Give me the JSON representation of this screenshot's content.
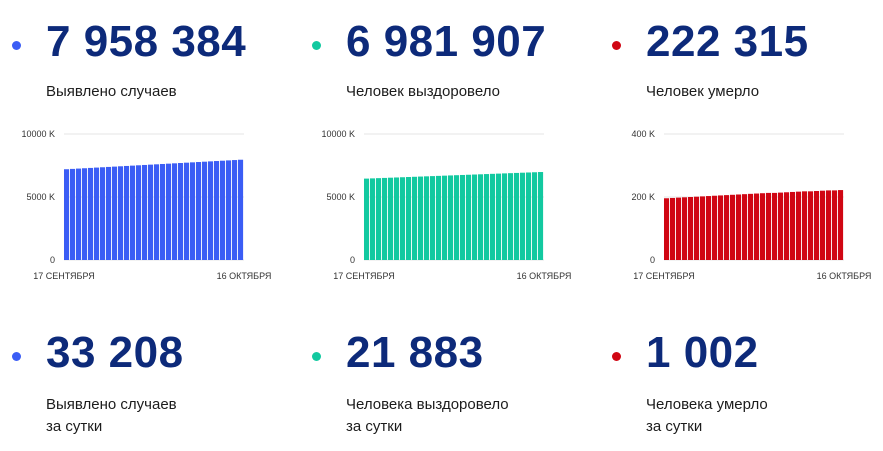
{
  "colors": {
    "title": "#0d2a7a",
    "cases": "#3b5df5",
    "recovered": "#12c9a0",
    "deaths": "#d00613"
  },
  "top": [
    {
      "value": "7 958 384",
      "label": "Выявлено случаев"
    },
    {
      "value": "6 981 907",
      "label": "Человек выздоровело"
    },
    {
      "value": "222 315",
      "label": "Человек умерло"
    }
  ],
  "bottom": [
    {
      "value": "33 208",
      "label1": "Выявлено случаев",
      "label2": "за сутки"
    },
    {
      "value": "21 883",
      "label1": "Человека выздоровело",
      "label2": "за сутки"
    },
    {
      "value": "1 002",
      "label1": "Человека умерло",
      "label2": "за сутки"
    }
  ],
  "chart_data": [
    {
      "type": "bar",
      "series_color": "cases",
      "ylim": [
        0,
        10000
      ],
      "yticks": [
        0,
        5000,
        10000
      ],
      "ytick_labels": [
        "0",
        "5000 K",
        "10000 K"
      ],
      "x_start_label": "17 СЕНТЯБРЯ",
      "x_end_label": "16 ОКТЯБРЯ",
      "values": [
        7204,
        7230,
        7256,
        7282,
        7308,
        7334,
        7360,
        7386,
        7412,
        7438,
        7464,
        7490,
        7516,
        7542,
        7568,
        7594,
        7620,
        7646,
        7672,
        7698,
        7724,
        7750,
        7776,
        7802,
        7828,
        7854,
        7880,
        7906,
        7932,
        7958
      ]
    },
    {
      "type": "bar",
      "series_color": "recovered",
      "ylim": [
        0,
        10000
      ],
      "yticks": [
        0,
        5000,
        10000
      ],
      "ytick_labels": [
        "0",
        "5000 K",
        "10000 K"
      ],
      "x_start_label": "17 СЕНТЯБРЯ",
      "x_end_label": "16 ОКТЯБРЯ",
      "values": [
        6460,
        6478,
        6496,
        6514,
        6532,
        6550,
        6568,
        6586,
        6604,
        6622,
        6640,
        6658,
        6676,
        6694,
        6712,
        6730,
        6748,
        6766,
        6784,
        6802,
        6820,
        6838,
        6856,
        6874,
        6892,
        6910,
        6928,
        6946,
        6964,
        6982
      ]
    },
    {
      "type": "bar",
      "series_color": "deaths",
      "ylim": [
        0,
        400
      ],
      "yticks": [
        0,
        200,
        400
      ],
      "ytick_labels": [
        "0",
        "200 K",
        "400 K"
      ],
      "x_start_label": "17 СЕНТЯБРЯ",
      "x_end_label": "16 ОКТЯБРЯ",
      "values": [
        196,
        197,
        198,
        199,
        200,
        201,
        202,
        203,
        204,
        205,
        206,
        207,
        208,
        209,
        210,
        211,
        212,
        213,
        213,
        214,
        215,
        216,
        217,
        218,
        218,
        219,
        220,
        221,
        221,
        222
      ]
    }
  ]
}
